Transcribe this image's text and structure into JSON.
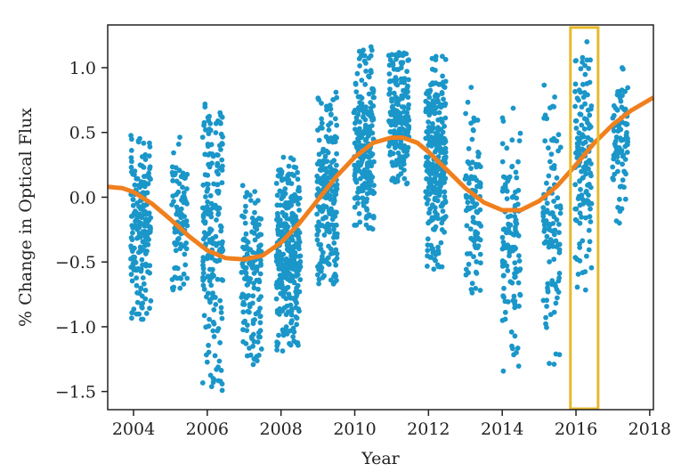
{
  "chart_data": {
    "type": "scatter",
    "xlabel": "Year",
    "ylabel": "% Change in Optical Flux",
    "xlim": [
      2003.3,
      2018.1
    ],
    "ylim": [
      -1.64,
      1.33
    ],
    "x_ticks": [
      2004,
      2006,
      2008,
      2010,
      2012,
      2014,
      2016,
      2018
    ],
    "y_ticks": [
      -1.5,
      -1.0,
      -0.5,
      0.0,
      0.5,
      1.0
    ],
    "y_tick_labels": [
      "−1.5",
      "−1.0",
      "−0.5",
      "0.0",
      "0.5",
      "1.0"
    ],
    "grid": false,
    "colors": {
      "points": "#1a96c9",
      "model": "#f07f1e",
      "highlight": "#e8b92a",
      "axes": "#222222"
    },
    "series": [
      {
        "kind": "points",
        "seasons": [
          {
            "center": 2004.2,
            "width": 0.55,
            "low": -0.98,
            "high": 0.48,
            "mean": -0.2,
            "count": 200
          },
          {
            "center": 2005.25,
            "width": 0.42,
            "low": -0.72,
            "high": 0.5,
            "mean": -0.15,
            "count": 90
          },
          {
            "center": 2006.15,
            "width": 0.55,
            "low": -1.5,
            "high": 0.72,
            "mean": -0.35,
            "count": 200
          },
          {
            "center": 2007.2,
            "width": 0.55,
            "low": -1.3,
            "high": 0.1,
            "mean": -0.55,
            "count": 150
          },
          {
            "center": 2008.2,
            "width": 0.65,
            "low": -1.2,
            "high": 0.32,
            "mean": -0.4,
            "count": 320
          },
          {
            "center": 2009.25,
            "width": 0.55,
            "low": -0.68,
            "high": 0.84,
            "mean": 0.0,
            "count": 220
          },
          {
            "center": 2010.25,
            "width": 0.55,
            "low": -0.25,
            "high": 1.18,
            "mean": 0.4,
            "count": 220
          },
          {
            "center": 2011.2,
            "width": 0.55,
            "low": 0.1,
            "high": 1.12,
            "mean": 0.55,
            "count": 200
          },
          {
            "center": 2012.2,
            "width": 0.55,
            "low": -0.56,
            "high": 1.1,
            "mean": 0.3,
            "count": 300
          },
          {
            "center": 2013.2,
            "width": 0.45,
            "low": -0.75,
            "high": 0.85,
            "mean": -0.05,
            "count": 100
          },
          {
            "center": 2014.25,
            "width": 0.5,
            "low": -1.36,
            "high": 0.7,
            "mean": -0.35,
            "count": 120
          },
          {
            "center": 2015.35,
            "width": 0.48,
            "low": -1.32,
            "high": 0.9,
            "mean": -0.25,
            "count": 110
          },
          {
            "center": 2016.2,
            "width": 0.45,
            "low": -0.73,
            "high": 1.21,
            "mean": 0.25,
            "count": 140
          },
          {
            "center": 2017.2,
            "width": 0.42,
            "low": -0.2,
            "high": 1.0,
            "mean": 0.45,
            "count": 90
          }
        ]
      },
      {
        "kind": "line",
        "x": [
          2003.3,
          2003.7,
          2004.0,
          2004.5,
          2005.0,
          2005.5,
          2006.0,
          2006.5,
          2007.0,
          2007.5,
          2008.0,
          2008.5,
          2009.0,
          2009.5,
          2010.0,
          2010.5,
          2011.0,
          2011.3,
          2011.7,
          2012.0,
          2012.5,
          2013.0,
          2013.5,
          2014.0,
          2014.5,
          2015.0,
          2015.5,
          2016.0,
          2016.5,
          2017.0,
          2017.5,
          2018.1
        ],
        "y": [
          0.08,
          0.07,
          0.04,
          -0.05,
          -0.17,
          -0.3,
          -0.41,
          -0.47,
          -0.48,
          -0.45,
          -0.35,
          -0.2,
          -0.02,
          0.16,
          0.31,
          0.42,
          0.46,
          0.46,
          0.42,
          0.35,
          0.21,
          0.07,
          -0.04,
          -0.1,
          -0.1,
          -0.03,
          0.09,
          0.25,
          0.42,
          0.56,
          0.67,
          0.77
        ]
      }
    ],
    "highlight_region": {
      "x": [
        2015.85,
        2016.6
      ],
      "y": [
        -1.64,
        1.31
      ]
    }
  }
}
